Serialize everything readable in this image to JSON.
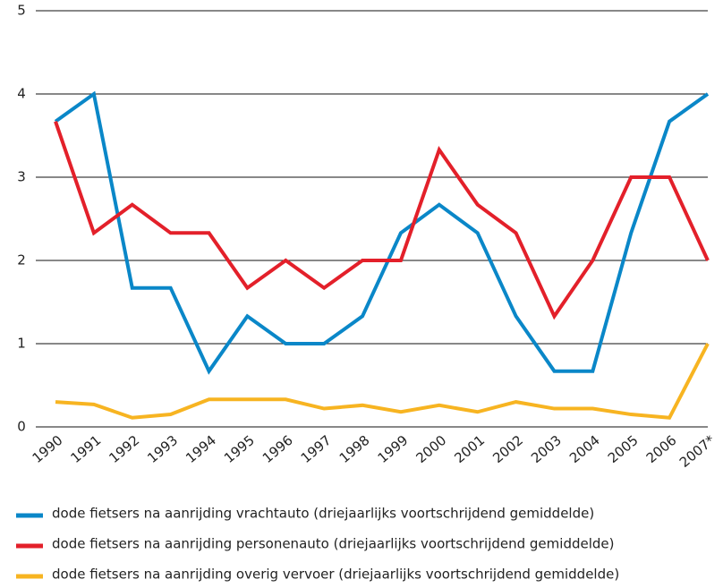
{
  "chart_data": {
    "type": "line",
    "categories": [
      "1990",
      "1991",
      "1992",
      "1993",
      "1994",
      "1995",
      "1996",
      "1997",
      "1998",
      "1999",
      "2000",
      "2001",
      "2002",
      "2003",
      "2004",
      "2005",
      "2006",
      "2007*"
    ],
    "series": [
      {
        "name": "dode fietsers na aanrijding vrachtauto (driejaarlijks voortschrijdend gemiddelde)",
        "color": "#0a87c8",
        "values": [
          3.67,
          4,
          1.67,
          1.67,
          0.67,
          1.33,
          1,
          1,
          1.33,
          2.33,
          2.67,
          2.33,
          1.33,
          0.67,
          0.67,
          2.33,
          3.67,
          4
        ]
      },
      {
        "name": "dode fietsers na aanrijding personenauto (driejaarlijks voortschrijdend gemiddelde)",
        "color": "#e3202a",
        "values": [
          3.67,
          2.33,
          2.67,
          2.33,
          2.33,
          1.67,
          2,
          1.67,
          2,
          2,
          3.33,
          2.67,
          2.33,
          1.33,
          2,
          3,
          3,
          2
        ]
      },
      {
        "name": "dode fietsers na aanrijding overig vervoer (driejaarlijks voortschrijdend gemiddelde)",
        "color": "#f7b421",
        "values": [
          0.3,
          0.27,
          0.11,
          0.15,
          0.33,
          0.33,
          0.33,
          0.22,
          0.26,
          0.18,
          0.26,
          0.18,
          0.3,
          0.22,
          0.22,
          0.15,
          0.11,
          1
        ]
      }
    ],
    "ylim": [
      0,
      5
    ],
    "yticks": [
      0,
      1,
      2,
      3,
      4,
      5
    ],
    "grid": true,
    "legend": "bottom"
  }
}
